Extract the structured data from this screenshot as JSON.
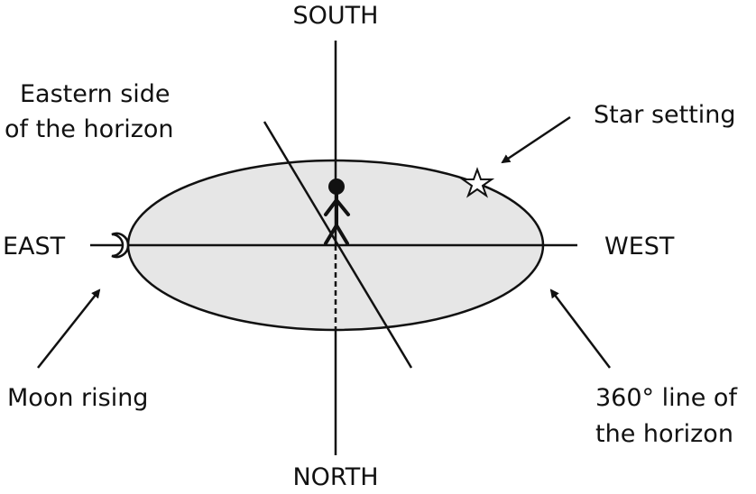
{
  "labels": {
    "south": "SOUTH",
    "north": "NORTH",
    "east": "EAST",
    "west": "WEST",
    "eastern_side": [
      "Eastern side",
      "of the horizon"
    ],
    "star_setting": "Star setting",
    "moon_rising": "Moon rising",
    "line_360": [
      "360° line of",
      "the horizon"
    ]
  }
}
